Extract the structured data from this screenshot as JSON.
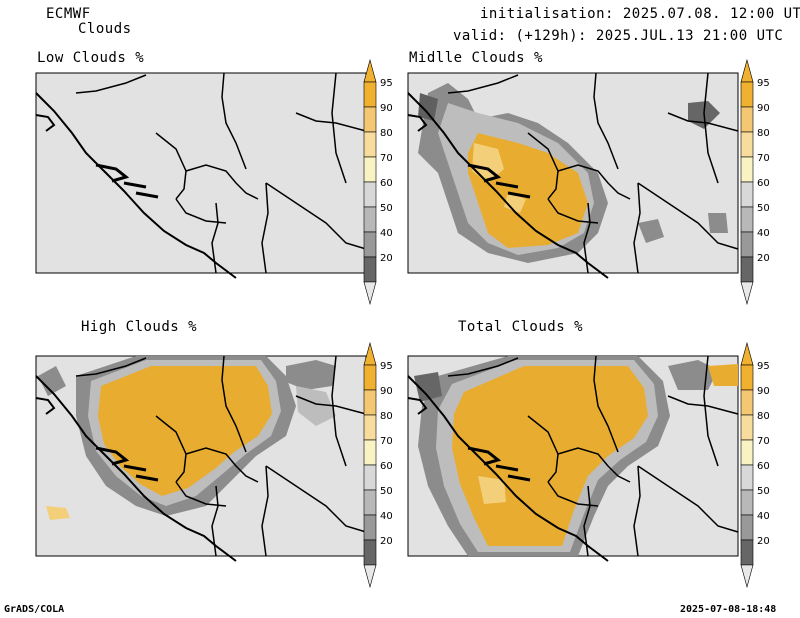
{
  "header": {
    "model": "ECMWF",
    "product": "Clouds",
    "init_line": "initialisation: 2025.07.08. 12:00 UTC",
    "valid_line": "valid: (+129h): 2025.JUL.13 21:00 UTC"
  },
  "panels": [
    {
      "id": "low",
      "title": "Low Clouds %"
    },
    {
      "id": "middle",
      "title": "Midlle Clouds %"
    },
    {
      "id": "high",
      "title": "High Clouds %"
    },
    {
      "id": "total",
      "title": "Total Clouds %"
    }
  ],
  "colorbar": {
    "labels": [
      "95",
      "90",
      "80",
      "70",
      "60",
      "50",
      "40",
      "20"
    ],
    "colors": [
      "#f0b030",
      "#f0b030",
      "#f4c872",
      "#f7dc9e",
      "#f9f3c4",
      "#d8d8d8",
      "#b8b8b8",
      "#999999",
      "#666666",
      "#e8e8e8"
    ]
  },
  "footer": {
    "left": "GrADS/COLA",
    "right": "2025-07-08-18:48"
  },
  "colors": {
    "map_bg": "#e2e2e2",
    "cloud_high": "#e8ad30",
    "cloud_mid": "#f3cf7a",
    "cloud_low": "#f8e9b8",
    "grey_light": "#bdbdbd",
    "grey_mid": "#8c8c8c",
    "grey_dark": "#5f5f5f"
  }
}
